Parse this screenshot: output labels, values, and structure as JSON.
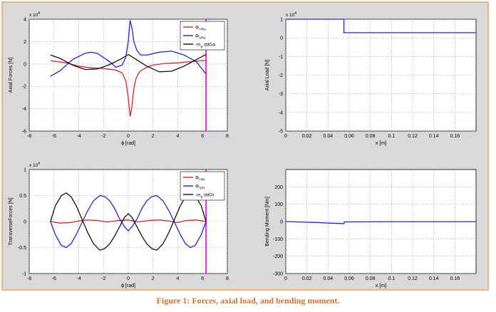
{
  "caption": "Figure 1: Forces, axial load, and bending moment.",
  "colors": {
    "red": "#e02020",
    "blue": "#2222ee",
    "black": "#111111",
    "magenta": "#dd00dd"
  },
  "chart_data": [
    {
      "type": "line",
      "xlabel": "ϕ [rad]",
      "ylabel": "Axial Forces [N]",
      "exponent": "x 10",
      "exponent_power": "4",
      "xlim": [
        -8,
        8
      ],
      "ylim": [
        -6,
        4
      ],
      "xticks": [
        -8,
        -6,
        -4,
        -2,
        0,
        2,
        4,
        6,
        8
      ],
      "yticks": [
        -6,
        -4,
        -2,
        0,
        2,
        4
      ],
      "grid": true,
      "legend_position": "top-right",
      "vline_x": 6.28,
      "series": [
        {
          "name": "Φ",
          "sub": "HRa",
          "color": "red",
          "x": [
            -6.28,
            -5,
            -4,
            -3,
            -2,
            -1,
            -0.5,
            -0.2,
            0,
            0.15,
            0.3,
            0.45,
            0.6,
            0.8,
            1,
            1.5,
            2,
            3,
            4,
            5,
            6,
            6.28
          ],
          "y": [
            0.3,
            0.1,
            -0.2,
            -0.35,
            -0.4,
            -0.55,
            -0.8,
            -1.5,
            -3,
            -4.7,
            -3.8,
            -2.2,
            -1.4,
            -0.9,
            -0.6,
            -0.3,
            -0.1,
            0.05,
            0.1,
            0.2,
            0.3,
            0.3
          ]
        },
        {
          "name": "Φ",
          "sub": "SRa",
          "color": "blue",
          "x": [
            -6.28,
            -5.5,
            -4.5,
            -3.5,
            -3,
            -2.5,
            -1.5,
            -1,
            -0.5,
            -0.2,
            0,
            0.15,
            0.3,
            0.45,
            0.7,
            1,
            1.5,
            2.5,
            3.5,
            4.5,
            5.5,
            6.28
          ],
          "y": [
            -1.1,
            -0.6,
            0.4,
            0.95,
            1.05,
            0.95,
            0.2,
            -0.3,
            -0.1,
            0.6,
            2,
            3.9,
            3.2,
            2,
            1.2,
            0.8,
            0.8,
            1.05,
            1.15,
            0.8,
            0.2,
            -0.9
          ]
        },
        {
          "name": "-m",
          "sub": "g",
          "suffix": " ddGa",
          "color": "black",
          "x": [
            -6.28,
            -5.5,
            -4.5,
            -3.5,
            -2.5,
            -1.5,
            -0.5,
            0,
            0.5,
            1.5,
            2.5,
            3.5,
            4.5,
            5.5,
            6.28
          ],
          "y": [
            0.8,
            0.5,
            -0.1,
            -0.5,
            -0.45,
            -0.05,
            0.5,
            0.85,
            0.5,
            -0.2,
            -0.7,
            -0.65,
            -0.2,
            0.4,
            0.85
          ]
        }
      ]
    },
    {
      "type": "line",
      "xlabel": "x [m]",
      "ylabel": "Axial Load [N]",
      "exponent": "x 10",
      "exponent_power": "4",
      "xlim": [
        0,
        0.18
      ],
      "ylim": [
        -5,
        1
      ],
      "xticks": [
        0,
        0.02,
        0.04,
        0.06,
        0.08,
        0.1,
        0.12,
        0.14,
        0.16
      ],
      "yticks": [
        -5,
        -4,
        -3,
        -2,
        -1,
        0,
        1
      ],
      "grid": true,
      "series": [
        {
          "color": "blue",
          "x": [
            0,
            0.055,
            0.055,
            0.18
          ],
          "y": [
            1.0,
            1.0,
            0.28,
            0.28
          ]
        }
      ]
    },
    {
      "type": "line",
      "xlabel": "ϕ [rad]",
      "ylabel": "TransverseForces [N]",
      "exponent": "x 10",
      "exponent_power": "4",
      "xlim": [
        -8,
        8
      ],
      "ylim": [
        -1,
        1
      ],
      "xticks": [
        -8,
        -6,
        -4,
        -2,
        0,
        2,
        4,
        6,
        8
      ],
      "yticks": [
        -1,
        -0.5,
        0,
        0.5,
        1
      ],
      "grid": true,
      "legend_position": "top-right",
      "vline_x": 6.28,
      "series": [
        {
          "name": "Φ",
          "sub": "HRt",
          "color": "red",
          "x": [
            -6.28,
            -5.5,
            -4.7,
            -4,
            -3.3,
            -2.5,
            -1.7,
            -0.8,
            0,
            0.8,
            1.7,
            2.5,
            3.3,
            4,
            4.7,
            5.5,
            6.28
          ],
          "y": [
            0,
            -0.03,
            -0.02,
            0.01,
            0.03,
            0.02,
            -0.01,
            0.02,
            0.03,
            -0.01,
            0.02,
            0.03,
            0.01,
            -0.02,
            0.02,
            0.03,
            0.0
          ]
        },
        {
          "name": "Φ",
          "sub": "SRt",
          "color": "blue",
          "x": [
            -6.28,
            -5.9,
            -5.4,
            -5,
            -4.6,
            -4.2,
            -3.8,
            -3.3,
            -2.8,
            -2.3,
            -1.9,
            -1.5,
            -1.1,
            -0.7,
            -0.3,
            0,
            0.3,
            0.7,
            1.1,
            1.5,
            1.9,
            2.3,
            2.8,
            3.3,
            3.8,
            4.2,
            4.6,
            5,
            5.4,
            5.9,
            6.28
          ],
          "y": [
            0,
            -0.25,
            -0.46,
            -0.5,
            -0.42,
            -0.25,
            -0.05,
            0.2,
            0.4,
            0.5,
            0.48,
            0.4,
            0.25,
            0.05,
            -0.1,
            -0.18,
            -0.1,
            0.05,
            0.25,
            0.4,
            0.48,
            0.5,
            0.4,
            0.2,
            -0.05,
            -0.25,
            -0.42,
            -0.5,
            -0.46,
            -0.25,
            0
          ]
        },
        {
          "name": "-m",
          "sub": "g",
          "suffix": " ddGt",
          "color": "black",
          "x": [
            -6.28,
            -5.9,
            -5.4,
            -5,
            -4.6,
            -4.2,
            -3.8,
            -3.3,
            -2.8,
            -2.3,
            -1.9,
            -1.5,
            -1.1,
            -0.7,
            -0.3,
            0,
            0.3,
            0.7,
            1.1,
            1.5,
            1.9,
            2.3,
            2.8,
            3.3,
            3.8,
            4.2,
            4.6,
            5,
            5.4,
            5.9,
            6.28
          ],
          "y": [
            0,
            0.3,
            0.5,
            0.55,
            0.47,
            0.3,
            0.08,
            -0.2,
            -0.43,
            -0.55,
            -0.52,
            -0.43,
            -0.28,
            -0.1,
            0.08,
            0.15,
            0.08,
            -0.1,
            -0.28,
            -0.43,
            -0.52,
            -0.55,
            -0.43,
            -0.2,
            0.08,
            0.3,
            0.47,
            0.55,
            0.5,
            0.3,
            0
          ]
        }
      ]
    },
    {
      "type": "line",
      "xlabel": "x [m]",
      "ylabel": "Bending Moment [Nm]",
      "xlim": [
        0,
        0.18
      ],
      "ylim": [
        -300,
        300
      ],
      "xticks": [
        0,
        0.02,
        0.04,
        0.06,
        0.08,
        0.1,
        0.12,
        0.14,
        0.16
      ],
      "yticks": [
        -300,
        -200,
        -100,
        0,
        100,
        200
      ],
      "grid": true,
      "series": [
        {
          "color": "blue",
          "x": [
            0,
            0.01,
            0.02,
            0.03,
            0.04,
            0.05,
            0.055,
            0.0555,
            0.07,
            0.1,
            0.14,
            0.18
          ],
          "y": [
            0,
            -2,
            -4,
            -6,
            -9,
            -11,
            -12,
            -2,
            -2,
            -1,
            -1,
            -1
          ]
        }
      ]
    }
  ]
}
